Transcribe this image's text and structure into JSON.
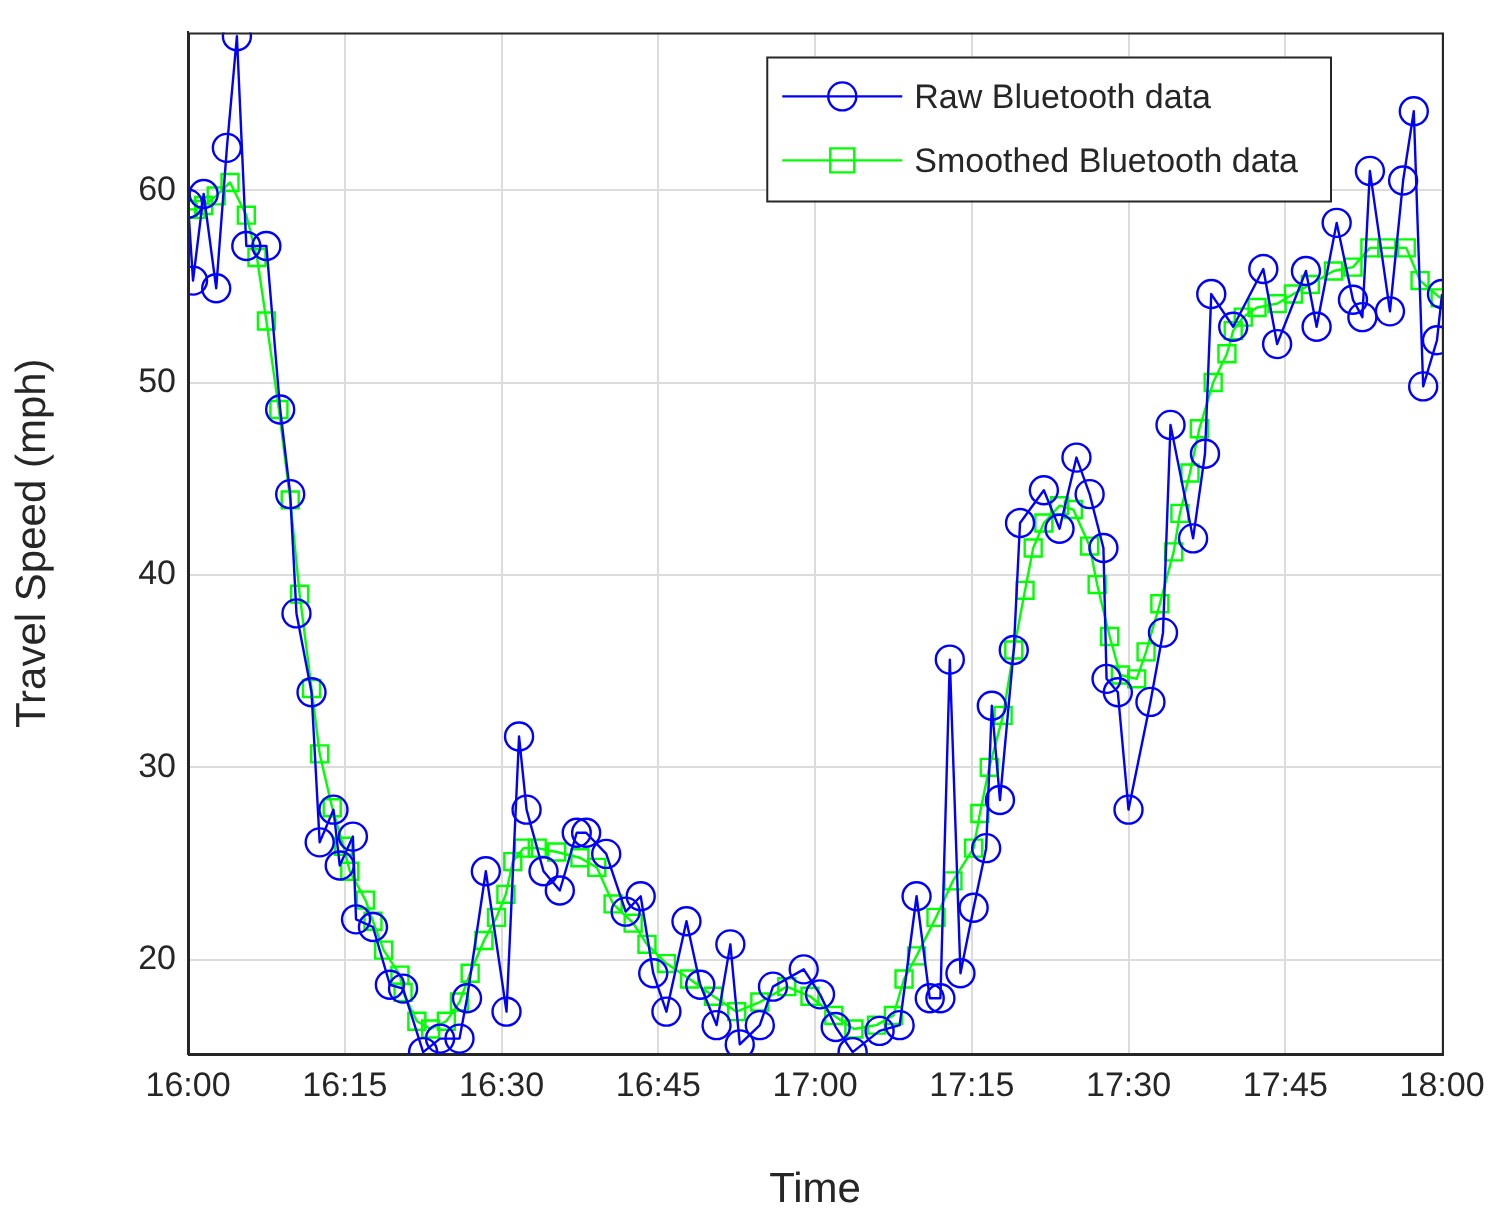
{
  "chart_data": {
    "type": "line",
    "xlabel": "Time",
    "ylabel": "Travel Speed (mph)",
    "xlim": [
      16,
      18
    ],
    "ylim": [
      15.1,
      68.2
    ],
    "xticks": [
      {
        "value": 16,
        "label": "16:00"
      },
      {
        "value": 16.25,
        "label": "16:15"
      },
      {
        "value": 16.5,
        "label": "16:30"
      },
      {
        "value": 16.75,
        "label": "16:45"
      },
      {
        "value": 17,
        "label": "17:00"
      },
      {
        "value": 17.25,
        "label": "17:15"
      },
      {
        "value": 17.5,
        "label": "17:30"
      },
      {
        "value": 17.75,
        "label": "17:45"
      },
      {
        "value": 18,
        "label": "18:00"
      }
    ],
    "yticks": [
      20,
      30,
      40,
      50,
      60
    ],
    "grid": true,
    "legend": "top right",
    "series": [
      {
        "name": "Raw Bluetooth data",
        "color": "#0000ff",
        "marker": "circle",
        "x": [
          16.0,
          16.008,
          16.025,
          16.045,
          16.062,
          16.078,
          16.093,
          16.125,
          16.147,
          16.163,
          16.173,
          16.197,
          16.21,
          16.232,
          16.242,
          16.263,
          16.268,
          16.295,
          16.322,
          16.343,
          16.375,
          16.402,
          16.433,
          16.445,
          16.475,
          16.508,
          16.528,
          16.54,
          16.567,
          16.593,
          16.62,
          16.635,
          16.667,
          16.698,
          16.722,
          16.742,
          16.763,
          16.795,
          16.817,
          16.843,
          16.865,
          16.88,
          16.912,
          16.933,
          16.982,
          17.008,
          17.033,
          17.06,
          17.103,
          17.135,
          17.162,
          17.183,
          17.2,
          17.215,
          17.232,
          17.253,
          17.273,
          17.282,
          17.295,
          17.317,
          17.327,
          17.365,
          17.39,
          17.417,
          17.438,
          17.46,
          17.465,
          17.483,
          17.5,
          17.535,
          17.555,
          17.567,
          17.603,
          17.622,
          17.632,
          17.667,
          17.715,
          17.737,
          17.783,
          17.8,
          17.832,
          17.858,
          17.873,
          17.885,
          17.917,
          17.938,
          17.955,
          17.97,
          17.992,
          18.0
        ],
        "values": [
          59.3,
          55.3,
          59.8,
          54.9,
          62.2,
          68,
          57.1,
          57.1,
          48.6,
          44.2,
          38.0,
          33.9,
          26.1,
          27.8,
          24.9,
          26.4,
          22.1,
          21.7,
          18.7,
          18.5,
          15.2,
          15.9,
          15.9,
          18,
          24.6,
          17.3,
          31.6,
          27.8,
          24.6,
          23.6,
          26.6,
          26.6,
          25.5,
          22.5,
          23.3,
          19.3,
          17.3,
          22,
          18.7,
          16.6,
          20.8,
          15.6,
          16.6,
          18.6,
          19.5,
          18.2,
          16.5,
          15.2,
          16.3,
          16.6,
          23.3,
          18,
          18,
          35.6,
          19.3,
          22.7,
          25.8,
          33.2,
          28.3,
          36.1,
          42.7,
          44.4,
          42.4,
          46.1,
          44.2,
          41.4,
          34.6,
          33.9,
          27.8,
          33.4,
          37,
          47.8,
          41.9,
          46.3,
          54.6,
          52.9,
          55.9,
          52,
          55.8,
          52.9,
          58.3,
          54.3,
          53.4,
          61,
          53.7,
          60.5,
          64.1,
          49.8,
          52.2,
          54.6
        ]
      },
      {
        "name": "Smoothed Bluetooth data",
        "color": "#00ff00",
        "marker": "square",
        "x": [
          16.0,
          16.013,
          16.025,
          16.045,
          16.067,
          16.093,
          16.11,
          16.125,
          16.145,
          16.163,
          16.178,
          16.197,
          16.21,
          16.23,
          16.248,
          16.258,
          16.283,
          16.295,
          16.312,
          16.338,
          16.343,
          16.365,
          16.387,
          16.412,
          16.433,
          16.45,
          16.472,
          16.492,
          16.507,
          16.518,
          16.535,
          16.557,
          16.588,
          16.625,
          16.652,
          16.678,
          16.71,
          16.732,
          16.763,
          16.8,
          16.838,
          16.875,
          16.912,
          16.955,
          16.992,
          17.03,
          17.062,
          17.098,
          17.125,
          17.142,
          17.162,
          17.193,
          17.22,
          17.253,
          17.263,
          17.278,
          17.3,
          17.317,
          17.335,
          17.348,
          17.365,
          17.39,
          17.412,
          17.438,
          17.45,
          17.47,
          17.487,
          17.513,
          17.528,
          17.55,
          17.572,
          17.582,
          17.598,
          17.613,
          17.635,
          17.657,
          17.667,
          17.683,
          17.705,
          17.737,
          17.763,
          17.79,
          17.827,
          17.858,
          17.885,
          17.912,
          17.943,
          17.965,
          17.997
        ],
        "values": [
          59.0,
          59.0,
          59.2,
          59.7,
          60.4,
          58.7,
          56.5,
          53.2,
          48.6,
          43.9,
          39.0,
          34.1,
          30.7,
          27.9,
          25.9,
          24.6,
          23.1,
          22.0,
          20.5,
          19.2,
          18.3,
          16.8,
          16.4,
          16.8,
          17.8,
          19.3,
          21.0,
          22.2,
          23.4,
          25.1,
          25.8,
          25.8,
          25.6,
          25.3,
          24.8,
          22.9,
          21.9,
          20.8,
          19.8,
          19.0,
          18.1,
          17.3,
          17.8,
          18.6,
          18.1,
          17.1,
          16.4,
          16.6,
          17.1,
          19.0,
          20.2,
          22.2,
          24.1,
          25.8,
          27.6,
          30.0,
          32.7,
          36.1,
          39.2,
          41.4,
          42.7,
          43.6,
          43.4,
          41.5,
          39.5,
          36.8,
          34.8,
          34.6,
          36.0,
          38.5,
          41.2,
          43.2,
          45.3,
          47.6,
          50.0,
          51.5,
          52.7,
          53.4,
          53.9,
          54.1,
          54.6,
          55.1,
          55.8,
          56.0,
          57.0,
          57.0,
          57.0,
          55.3,
          54.4
        ]
      }
    ]
  }
}
